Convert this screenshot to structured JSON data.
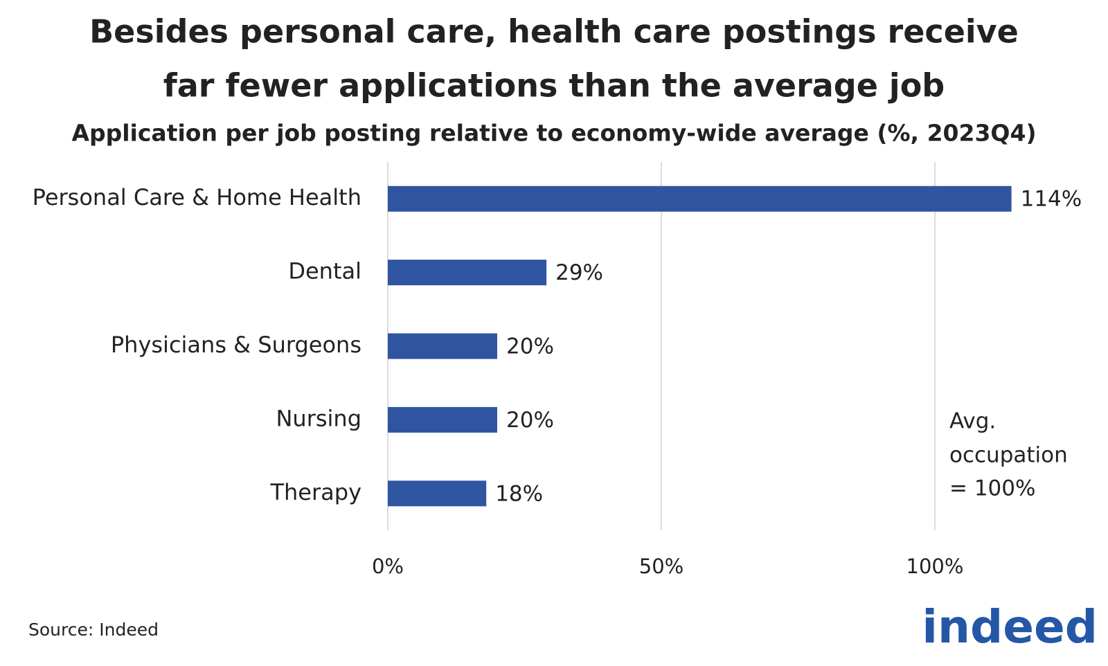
{
  "chart_data": {
    "type": "bar",
    "orientation": "horizontal",
    "title": [
      "Besides personal care, health care postings receive",
      "far fewer applications than the average job"
    ],
    "subtitle": "Application per job posting relative to economy-wide average (%, 2023Q4)",
    "categories": [
      "Personal Care & Home Health",
      "Dental",
      "Physicians & Surgeons",
      "Nursing",
      "Therapy"
    ],
    "values": [
      114,
      29,
      20,
      20,
      18
    ],
    "value_labels": [
      "114%",
      "29%",
      "20%",
      "20%",
      "18%"
    ],
    "color": "#3055a0",
    "xlim": [
      0,
      120
    ],
    "xticks": [
      {
        "value": 0,
        "label": "0%"
      },
      {
        "value": 50,
        "label": "50%"
      },
      {
        "value": 100,
        "label": "100%"
      }
    ],
    "grid": true,
    "annotation": [
      "Avg.",
      "occupation",
      "= 100%"
    ],
    "source": "Source: Indeed",
    "logo": "indeed"
  }
}
